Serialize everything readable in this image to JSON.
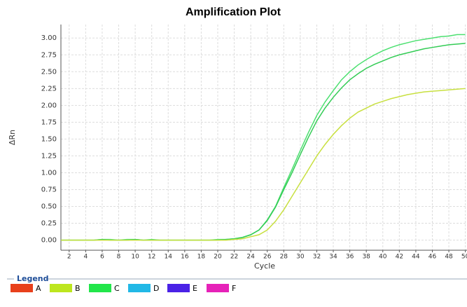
{
  "chart_data": {
    "type": "line",
    "title": "Amplification Plot",
    "xlabel": "Cycle",
    "ylabel": "ΔRn",
    "legend_title": "Legend",
    "x": [
      1,
      2,
      3,
      4,
      5,
      6,
      7,
      8,
      9,
      10,
      11,
      12,
      13,
      14,
      15,
      16,
      17,
      18,
      19,
      20,
      21,
      22,
      23,
      24,
      25,
      26,
      27,
      28,
      29,
      30,
      31,
      32,
      33,
      34,
      35,
      36,
      37,
      38,
      39,
      40,
      41,
      42,
      43,
      44,
      45,
      46,
      47,
      48,
      49,
      50
    ],
    "series": [
      {
        "color": "#4ce070",
        "values": [
          0,
          0,
          0,
          0,
          0,
          0.01,
          0.01,
          0,
          0.01,
          0.01,
          0,
          0.01,
          0,
          0,
          0,
          0,
          0,
          0,
          0,
          0.01,
          0.01,
          0.02,
          0.04,
          0.08,
          0.15,
          0.3,
          0.5,
          0.78,
          1.05,
          1.33,
          1.6,
          1.85,
          2.05,
          2.22,
          2.38,
          2.5,
          2.6,
          2.68,
          2.75,
          2.81,
          2.86,
          2.9,
          2.93,
          2.96,
          2.98,
          3.0,
          3.02,
          3.03,
          3.05,
          3.05
        ]
      },
      {
        "color": "#33cc55",
        "values": [
          0,
          0,
          0,
          0,
          0,
          0.01,
          0,
          0,
          0,
          0.01,
          0,
          0,
          0,
          0,
          0,
          0,
          0,
          0,
          0,
          0,
          0.01,
          0.02,
          0.04,
          0.08,
          0.15,
          0.29,
          0.49,
          0.75,
          1.0,
          1.27,
          1.53,
          1.77,
          1.96,
          2.12,
          2.26,
          2.38,
          2.47,
          2.55,
          2.61,
          2.66,
          2.71,
          2.75,
          2.78,
          2.81,
          2.84,
          2.86,
          2.88,
          2.9,
          2.91,
          2.92
        ]
      },
      {
        "color": "#c8e040",
        "values": [
          0,
          0,
          0,
          0,
          0,
          0,
          0,
          0,
          0,
          0,
          0,
          0,
          0,
          0,
          0,
          0,
          0,
          0,
          0,
          0,
          0,
          0.01,
          0.02,
          0.05,
          0.08,
          0.15,
          0.28,
          0.45,
          0.65,
          0.85,
          1.05,
          1.25,
          1.42,
          1.57,
          1.7,
          1.81,
          1.9,
          1.96,
          2.02,
          2.06,
          2.1,
          2.13,
          2.16,
          2.18,
          2.2,
          2.21,
          2.22,
          2.23,
          2.24,
          2.25
        ]
      }
    ],
    "legend": [
      {
        "name": "A",
        "color": "#e8401c"
      },
      {
        "name": "B",
        "color": "#bde61e"
      },
      {
        "name": "C",
        "color": "#22e64a"
      },
      {
        "name": "D",
        "color": "#22b8e6"
      },
      {
        "name": "E",
        "color": "#4a22e6"
      },
      {
        "name": "F",
        "color": "#e622b8"
      }
    ],
    "xlim": [
      1,
      50.2
    ],
    "ylim": [
      -0.15,
      3.2
    ],
    "xticks": [
      2,
      4,
      6,
      8,
      10,
      12,
      14,
      16,
      18,
      20,
      22,
      24,
      26,
      28,
      30,
      32,
      34,
      36,
      38,
      40,
      42,
      44,
      46,
      48,
      50
    ],
    "yticks": [
      {
        "value": 0,
        "label": "0.00"
      },
      {
        "value": 0.25,
        "label": "0.25"
      },
      {
        "value": 0.5,
        "label": "0.50"
      },
      {
        "value": 0.75,
        "label": "0.75"
      },
      {
        "value": 1,
        "label": "1.00"
      },
      {
        "value": 1.25,
        "label": "1.25"
      },
      {
        "value": 1.5,
        "label": "1.50"
      },
      {
        "value": 1.75,
        "label": "1.75"
      },
      {
        "value": 2,
        "label": "2.00"
      },
      {
        "value": 2.25,
        "label": "2.25"
      },
      {
        "value": 2.5,
        "label": "2.50"
      },
      {
        "value": 2.75,
        "label": "2.75"
      },
      {
        "value": 3,
        "label": "3.00"
      }
    ],
    "grid": true
  }
}
